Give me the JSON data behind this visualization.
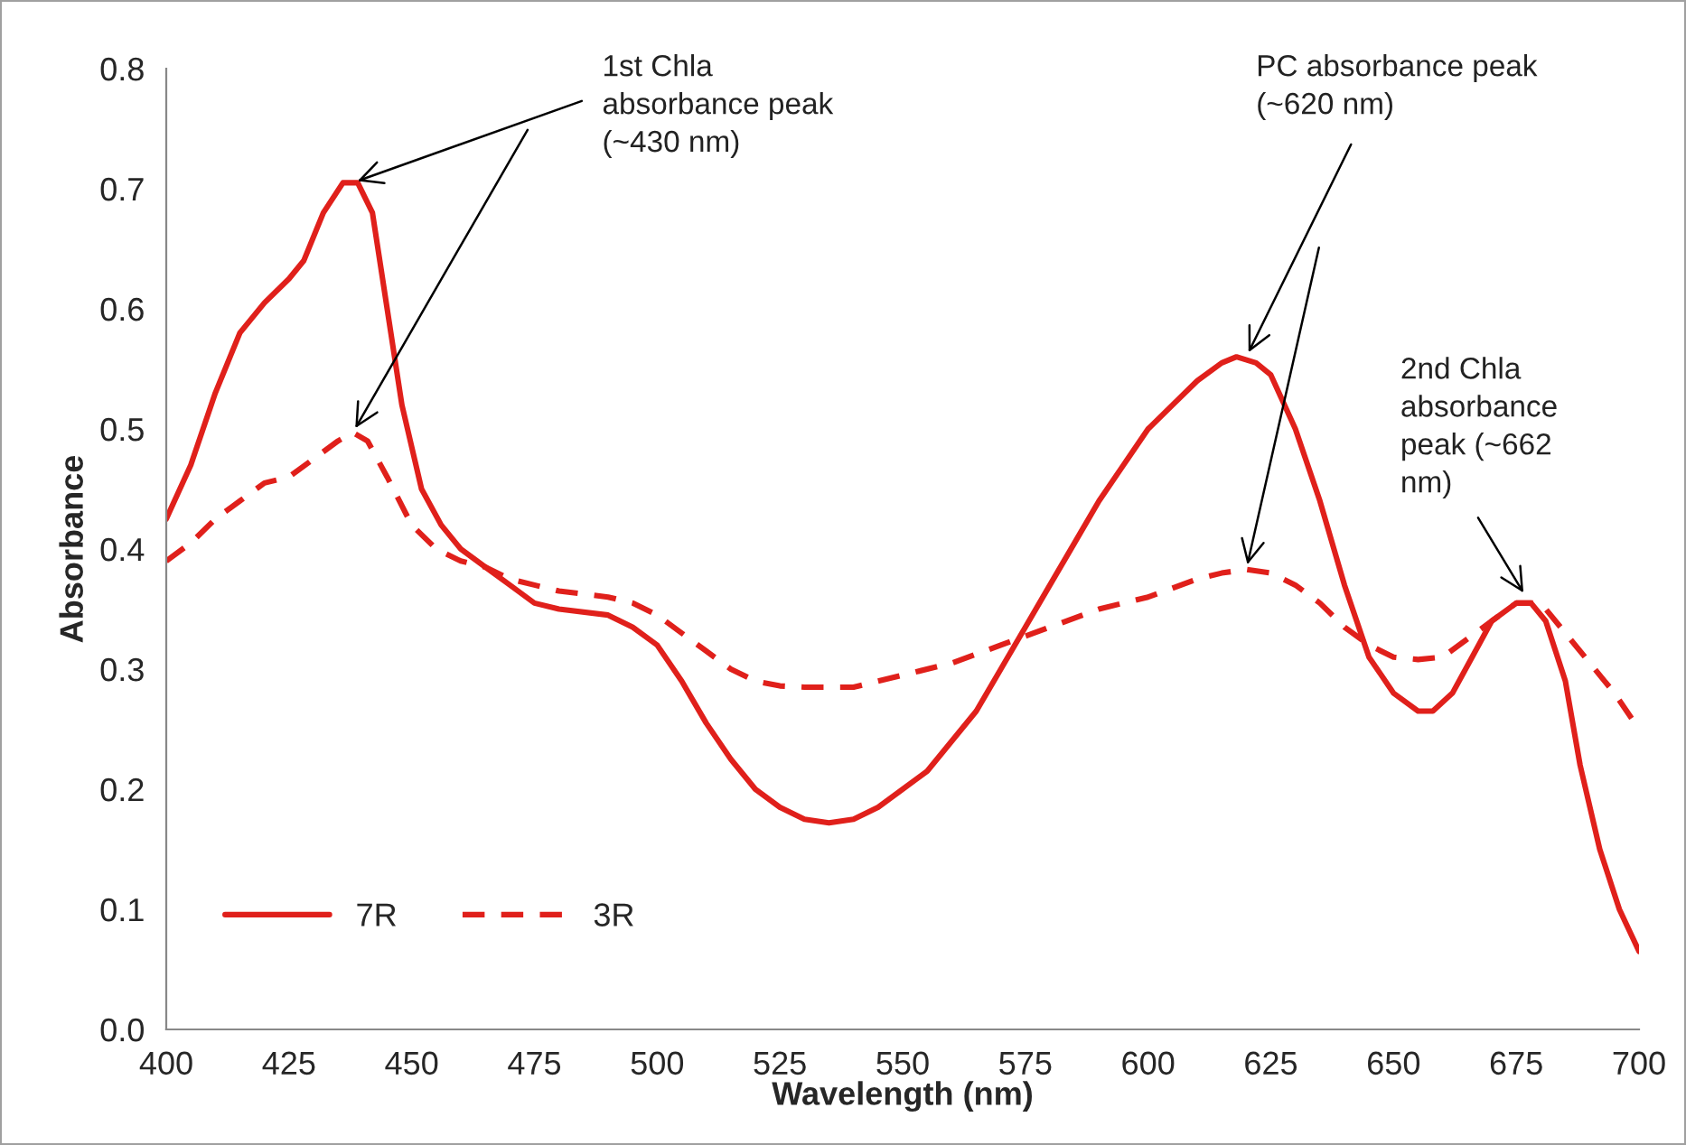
{
  "chart_data": {
    "type": "line",
    "xlabel": "Wavelength (nm)",
    "ylabel": "Absorbance",
    "xlim": [
      400,
      700
    ],
    "xticks": [
      400,
      425,
      450,
      475,
      500,
      525,
      550,
      575,
      600,
      625,
      650,
      675,
      700
    ],
    "ylim": [
      0,
      0.8
    ],
    "yticks": [
      {
        "value": 0,
        "label": "0.0"
      },
      0.1,
      0.2,
      0.3,
      0.4,
      0.5,
      0.6,
      0.7,
      0.8
    ],
    "grid": false,
    "legend": "bottom left",
    "annotations": [
      {
        "text": "1st Chla\nabsorbance peak\n(~430 nm)",
        "x": 438,
        "y": 0.705
      },
      {
        "text": "PC absorbance peak\n(~620 nm)",
        "x": 620,
        "y": 0.56
      },
      {
        "text": "2nd Chla\nabsorbance\npeak (~662\nnm)",
        "x": 677,
        "y": 0.36
      }
    ],
    "series": [
      {
        "name": "7R",
        "color": "#e0201b",
        "line_style": "solid",
        "x": [
          400,
          405,
          410,
          415,
          420,
          425,
          428,
          432,
          436,
          439,
          442,
          445,
          448,
          452,
          456,
          460,
          465,
          470,
          475,
          480,
          490,
          495,
          500,
          505,
          510,
          515,
          520,
          525,
          530,
          535,
          540,
          545,
          550,
          555,
          560,
          565,
          570,
          575,
          580,
          585,
          590,
          595,
          600,
          605,
          610,
          615,
          618,
          622,
          625,
          630,
          635,
          640,
          645,
          650,
          655,
          658,
          662,
          666,
          670,
          675,
          678,
          681,
          685,
          688,
          692,
          696,
          700
        ],
        "values": [
          0.425,
          0.47,
          0.53,
          0.58,
          0.605,
          0.625,
          0.64,
          0.68,
          0.705,
          0.705,
          0.68,
          0.6,
          0.52,
          0.45,
          0.42,
          0.4,
          0.385,
          0.37,
          0.355,
          0.35,
          0.345,
          0.335,
          0.32,
          0.29,
          0.255,
          0.225,
          0.2,
          0.185,
          0.175,
          0.172,
          0.175,
          0.185,
          0.2,
          0.215,
          0.24,
          0.265,
          0.3,
          0.335,
          0.37,
          0.405,
          0.44,
          0.47,
          0.5,
          0.52,
          0.54,
          0.555,
          0.56,
          0.555,
          0.545,
          0.5,
          0.44,
          0.37,
          0.31,
          0.28,
          0.265,
          0.265,
          0.28,
          0.31,
          0.34,
          0.355,
          0.355,
          0.34,
          0.29,
          0.22,
          0.15,
          0.1,
          0.065
        ]
      },
      {
        "name": "3R",
        "color": "#e0201b",
        "line_style": "dashed",
        "x": [
          400,
          405,
          410,
          415,
          420,
          425,
          430,
          435,
          438,
          441,
          445,
          450,
          455,
          460,
          465,
          470,
          475,
          480,
          490,
          495,
          500,
          505,
          510,
          515,
          520,
          525,
          530,
          540,
          545,
          550,
          560,
          570,
          580,
          590,
          600,
          610,
          615,
          620,
          625,
          630,
          635,
          640,
          645,
          650,
          655,
          660,
          665,
          670,
          675,
          680,
          685,
          690,
          695,
          700
        ],
        "values": [
          0.39,
          0.405,
          0.425,
          0.44,
          0.455,
          0.46,
          0.475,
          0.49,
          0.497,
          0.49,
          0.46,
          0.42,
          0.4,
          0.39,
          0.385,
          0.375,
          0.37,
          0.365,
          0.36,
          0.355,
          0.345,
          0.33,
          0.315,
          0.3,
          0.29,
          0.286,
          0.285,
          0.285,
          0.29,
          0.295,
          0.305,
          0.32,
          0.335,
          0.35,
          0.36,
          0.375,
          0.38,
          0.383,
          0.38,
          0.37,
          0.355,
          0.335,
          0.32,
          0.31,
          0.308,
          0.31,
          0.325,
          0.34,
          0.355,
          0.355,
          0.33,
          0.305,
          0.28,
          0.25
        ]
      }
    ]
  }
}
